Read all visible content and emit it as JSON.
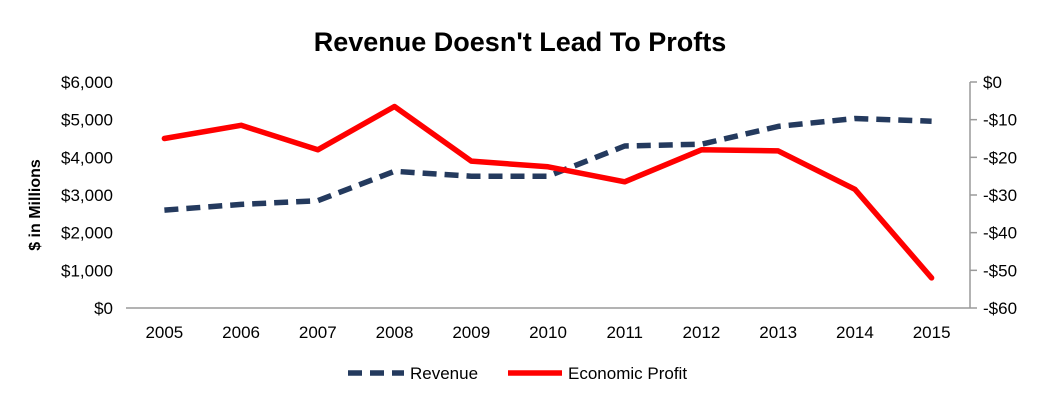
{
  "chart_data": {
    "type": "line",
    "title": "Revenue Doesn't Lead To Profts",
    "ylabel": "$ in Millions",
    "x": [
      "2005",
      "2006",
      "2007",
      "2008",
      "2009",
      "2010",
      "2011",
      "2012",
      "2013",
      "2014",
      "2015"
    ],
    "y_left": {
      "ticks": [
        "$0",
        "$1,000",
        "$2,000",
        "$3,000",
        "$4,000",
        "$5,000",
        "$6,000"
      ],
      "range": [
        0,
        6000
      ]
    },
    "y_right": {
      "ticks": [
        "-$60",
        "-$50",
        "-$40",
        "-$30",
        "-$20",
        "-$10",
        "$0"
      ],
      "range": [
        -60,
        0
      ]
    },
    "grid": false,
    "legend_position": "bottom",
    "series": [
      {
        "name": "Revenue",
        "axis": "left",
        "style": "dashed",
        "color": "#243a5e",
        "values": [
          2600,
          2750,
          2850,
          3630,
          3500,
          3500,
          4300,
          4350,
          4820,
          5030,
          4960
        ]
      },
      {
        "name": "Economic Profit",
        "axis": "right",
        "style": "solid",
        "color": "#ff0000",
        "values": [
          -15,
          -11.5,
          -18,
          -6.5,
          -21,
          -22.5,
          -26.5,
          -18,
          -18.3,
          -28.5,
          -52
        ]
      }
    ]
  }
}
